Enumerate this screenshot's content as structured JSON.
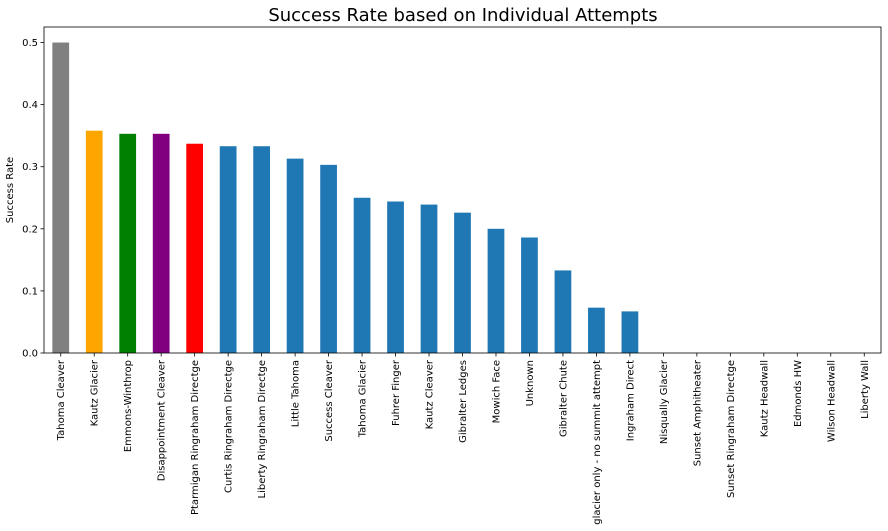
{
  "chart_data": {
    "type": "bar",
    "title": "Success Rate based on Individual Attempts",
    "xlabel": "",
    "ylabel": "Success Rate",
    "ylim": [
      0,
      0.525
    ],
    "yticks": [
      "0.0",
      "0.1",
      "0.2",
      "0.3",
      "0.4",
      "0.5"
    ],
    "grid": false,
    "legend": "none",
    "categories": [
      "Tahoma Cleaver",
      "Kautz Glacier",
      "Emmons-Winthrop",
      "Disappointment Cleaver",
      "Ptarmigan Ringraham Directge",
      "Curtis Ringraham Directge",
      "Liberty Ringraham Directge",
      "Little Tahoma",
      "Success Cleaver",
      "Tahoma Glacier",
      "Fuhrer Finger",
      "Kautz Cleaver",
      "Gibralter Ledges",
      "Mowich Face",
      "Unknown",
      "Gibralter Chute",
      "glacier only - no summit attempt",
      "Ingraham Direct",
      "Nisqually Glacier",
      "Sunset Amphitheater",
      "Sunset Ringraham Directge",
      "Kautz Headwall",
      "Edmonds HW",
      "Wilson Headwall",
      "Liberty Wall"
    ],
    "values": [
      0.5,
      0.358,
      0.353,
      0.353,
      0.337,
      0.333,
      0.333,
      0.313,
      0.303,
      0.25,
      0.244,
      0.239,
      0.226,
      0.2,
      0.186,
      0.133,
      0.073,
      0.067,
      0,
      0,
      0,
      0,
      0,
      0,
      0
    ],
    "colors": [
      "#808080",
      "#ffa500",
      "#008000",
      "#800080",
      "#ff0000",
      "#1f77b4",
      "#1f77b4",
      "#1f77b4",
      "#1f77b4",
      "#1f77b4",
      "#1f77b4",
      "#1f77b4",
      "#1f77b4",
      "#1f77b4",
      "#1f77b4",
      "#1f77b4",
      "#1f77b4",
      "#1f77b4",
      "#1f77b4",
      "#1f77b4",
      "#1f77b4",
      "#1f77b4",
      "#1f77b4",
      "#1f77b4",
      "#1f77b4"
    ]
  }
}
